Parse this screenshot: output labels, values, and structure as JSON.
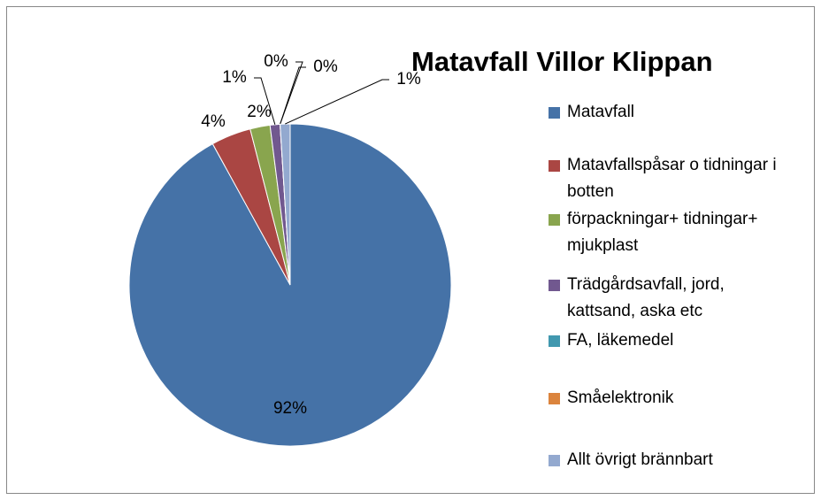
{
  "chart_data": {
    "type": "pie",
    "title": "Matavfall Villor Klippan",
    "categories": [
      "Matavfall",
      "Matavfallspåsar o tidningar i botten",
      "förpackningar+ tidningar+ mjukplast",
      "Trädgårdsavfall, jord, kattsand, aska etc",
      "FA, läkemedel",
      "Småelektronik",
      "Allt övrigt brännbart"
    ],
    "values": [
      92,
      4,
      2,
      1,
      0,
      0,
      1
    ],
    "value_labels": [
      "92%",
      "4%",
      "2%",
      "1%",
      "0%",
      "0%",
      "1%"
    ],
    "colors": [
      "#4572a7",
      "#aa4643",
      "#89a54e",
      "#71588f",
      "#4198af",
      "#db843d",
      "#93a9cf"
    ],
    "legend": "right"
  }
}
